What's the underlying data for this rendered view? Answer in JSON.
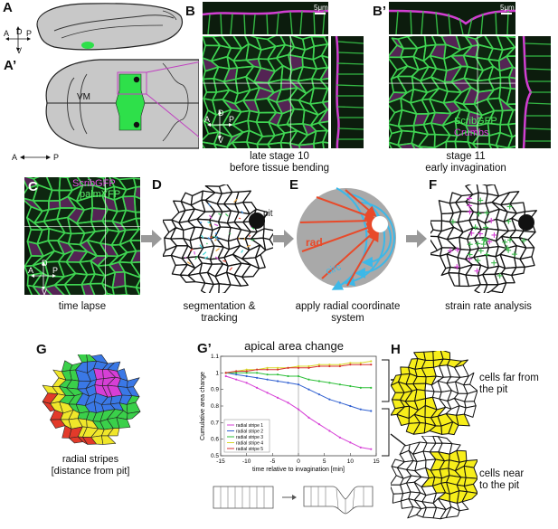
{
  "panels": {
    "A": {
      "letter": "A"
    },
    "A_prime": {
      "letter": "A’",
      "vm_label": "VM"
    },
    "B": {
      "letter": "B",
      "scale": "5μm",
      "caption_line1": "late stage 10",
      "caption_line2": "before tissue bending"
    },
    "B_prime": {
      "letter": "B’",
      "scale": "5μm",
      "label_scrib": "ScribGFP",
      "label_crumbs": "Crumbs",
      "caption_line1": "stage 11",
      "caption_line2": "early invagination"
    },
    "C": {
      "letter": "C",
      "label_scrib": "ScribGFP",
      "label_palm": "palmYFP",
      "caption": "time lapse"
    },
    "D": {
      "letter": "D",
      "pit_label": "pit",
      "caption_line1": "segmentation &",
      "caption_line2": "tracking"
    },
    "E": {
      "letter": "E",
      "rad_label": "rad",
      "circ_label": "circ",
      "caption_line1": "apply radial coordinate",
      "caption_line2": "system"
    },
    "F": {
      "letter": "F",
      "caption": "strain rate analysis"
    },
    "G": {
      "letter": "G",
      "caption_line1": "radial stripes",
      "caption_line2": "[distance from pit]"
    },
    "G_prime": {
      "letter": "G’",
      "title": "apical area change"
    },
    "H": {
      "letter": "H",
      "far_line1": "cells far from",
      "far_line2": "the pit",
      "near_line1": "cells near",
      "near_line2": "to the pit"
    }
  },
  "orientation": {
    "A": "A",
    "P": "P",
    "D": "D",
    "V": "V"
  },
  "colors": {
    "green": "#2ee04a",
    "magenta": "#e040e0",
    "yellow": "#f7ee1a",
    "arrow_gray": "#999999"
  },
  "chart_data": {
    "type": "line",
    "title": "apical area change",
    "xlabel": "time relative to invagination [min]",
    "ylabel": "Cumulative area change",
    "xlim": [
      -15,
      15
    ],
    "ylim": [
      0.5,
      1.1
    ],
    "xticks": [
      -15,
      -10,
      -5,
      0,
      5,
      10,
      15
    ],
    "yticks": [
      0.5,
      0.6,
      0.7,
      0.8,
      0.9,
      1,
      1.1
    ],
    "x": [
      -14,
      -12,
      -10,
      -8,
      -6,
      -4,
      -2,
      0,
      2,
      4,
      6,
      8,
      10,
      12,
      14
    ],
    "series": [
      {
        "name": "radial stripe 1",
        "color": "#d63fd6",
        "values": [
          0.98,
          0.96,
          0.94,
          0.91,
          0.88,
          0.85,
          0.82,
          0.78,
          0.73,
          0.69,
          0.65,
          0.61,
          0.58,
          0.55,
          0.54
        ]
      },
      {
        "name": "radial stripe 2",
        "color": "#3060d0",
        "values": [
          1.0,
          0.99,
          0.98,
          0.97,
          0.96,
          0.95,
          0.94,
          0.93,
          0.9,
          0.87,
          0.84,
          0.82,
          0.8,
          0.78,
          0.77
        ]
      },
      {
        "name": "radial stripe 3",
        "color": "#2fbf3a",
        "values": [
          1.0,
          1.0,
          1.0,
          1.0,
          0.99,
          0.99,
          0.98,
          0.98,
          0.96,
          0.95,
          0.94,
          0.93,
          0.92,
          0.91,
          0.91
        ]
      },
      {
        "name": "radial stripe 4",
        "color": "#d8d82a",
        "values": [
          1.0,
          1.01,
          1.02,
          1.02,
          1.03,
          1.03,
          1.03,
          1.04,
          1.04,
          1.05,
          1.05,
          1.05,
          1.06,
          1.06,
          1.07
        ]
      },
      {
        "name": "radial stripe 5",
        "color": "#d83030",
        "values": [
          1.0,
          1.01,
          1.01,
          1.02,
          1.02,
          1.02,
          1.03,
          1.03,
          1.03,
          1.04,
          1.04,
          1.04,
          1.05,
          1.05,
          1.05
        ]
      }
    ],
    "legend_position": "bottom-left"
  }
}
